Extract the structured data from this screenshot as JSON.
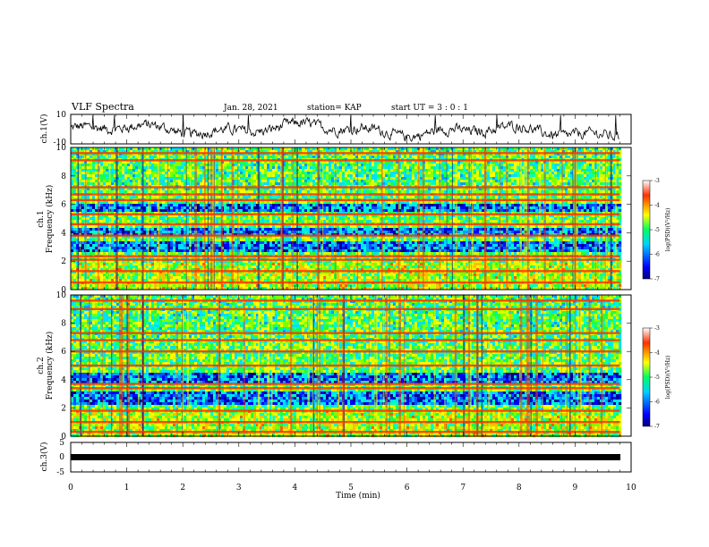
{
  "header": {
    "title": "VLF Spectra",
    "date": "Jan. 28, 2021",
    "station": "station= KAP",
    "start_ut": "start  UT =  3 : 0  : 1"
  },
  "colorbar": {
    "label": "log(PSD)(V²/Hz)",
    "range": [
      -7,
      -3
    ],
    "ticks": [
      "-3",
      "-4",
      "-5",
      "-6",
      "-7"
    ]
  },
  "chart_data": [
    {
      "type": "line",
      "ylabel": "ch.1(V)",
      "ylim": [
        -10,
        10
      ],
      "yticks": [
        "10",
        "-10"
      ],
      "xlim": [
        0,
        10
      ],
      "note": "noisy waveform trace"
    },
    {
      "type": "heatmap",
      "ylabel": "ch.1\nFrequency (kHz)",
      "ylabel_lines": [
        "ch.1",
        "Frequency (kHz)"
      ],
      "ylim": [
        0,
        10
      ],
      "yticks": [
        "10",
        "8",
        "6",
        "4",
        "2",
        "0"
      ],
      "xlim": [
        0,
        10
      ],
      "data_until": 9.8,
      "horizontal_bands_khz": [
        0.5,
        1.3,
        2.1,
        2.35,
        3.8,
        4.6,
        5.3,
        6.3,
        6.7,
        7.2,
        9.1,
        9.6
      ],
      "quiet_bands_khz": [
        [
          2.7,
          3.4
        ],
        [
          3.9,
          4.4
        ],
        [
          5.6,
          6.1
        ]
      ]
    },
    {
      "type": "heatmap",
      "ylabel": "ch.2\nFrequency (kHz)",
      "ylabel_lines": [
        "ch.2",
        "Frequency (kHz)"
      ],
      "ylim": [
        0,
        10
      ],
      "yticks": [
        "10",
        "8",
        "6",
        "4",
        "2",
        "0"
      ],
      "xlim": [
        0,
        10
      ],
      "data_until": 9.8,
      "horizontal_bands_khz": [
        0.3,
        1.0,
        1.8,
        3.4,
        3.7,
        5.0,
        6.0,
        6.8,
        7.3,
        9.0,
        9.6
      ],
      "quiet_bands_khz": [
        [
          2.3,
          3.2
        ],
        [
          3.9,
          4.6
        ]
      ]
    },
    {
      "type": "line",
      "ylabel": "ch.3(V)",
      "ylim": [
        -5,
        5
      ],
      "yticks": [
        "5",
        "0",
        "-5"
      ],
      "xlim": [
        0,
        10
      ],
      "xlabel": "Time (min)",
      "xticks": [
        "0",
        "1",
        "2",
        "3",
        "4",
        "5",
        "6",
        "7",
        "8",
        "9",
        "10"
      ],
      "note": "flat thick signal near 0 V"
    }
  ]
}
